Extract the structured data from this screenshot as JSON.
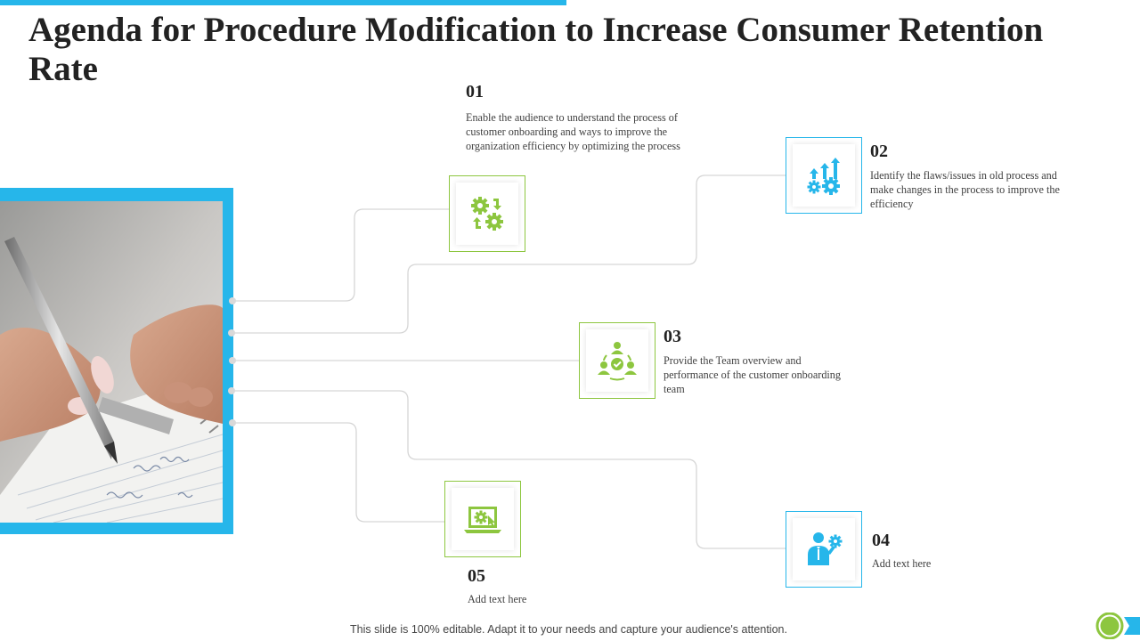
{
  "slide": {
    "title": "Agenda for Procedure Modification to Increase Consumer Retention Rate",
    "footer": "This slide is 100% editable. Adapt it to your needs and capture your audience's attention."
  },
  "colors": {
    "accent_blue": "#26b6ea",
    "accent_green": "#8dc63f",
    "connector_gray": "#d6d6d6"
  },
  "items": [
    {
      "number": "01",
      "text": "Enable the audience to understand  the process of customer onboarding  and ways to improve the organization  efficiency by optimizing the process",
      "icon": "gears-cycle-icon",
      "color": "green"
    },
    {
      "number": "02",
      "text": "Identify the flaws/issues in old process and make changes  in the process to improve the efficiency",
      "icon": "gears-growth-arrows-icon",
      "color": "blue"
    },
    {
      "number": "03",
      "text": "Provide the Team overview and performance  of the customer onboarding  team",
      "icon": "team-check-icon",
      "color": "green"
    },
    {
      "number": "04",
      "text": "Add text here",
      "icon": "businessman-gear-icon",
      "color": "blue"
    },
    {
      "number": "05",
      "text": "Add text here",
      "icon": "laptop-gear-icon",
      "color": "green"
    }
  ]
}
